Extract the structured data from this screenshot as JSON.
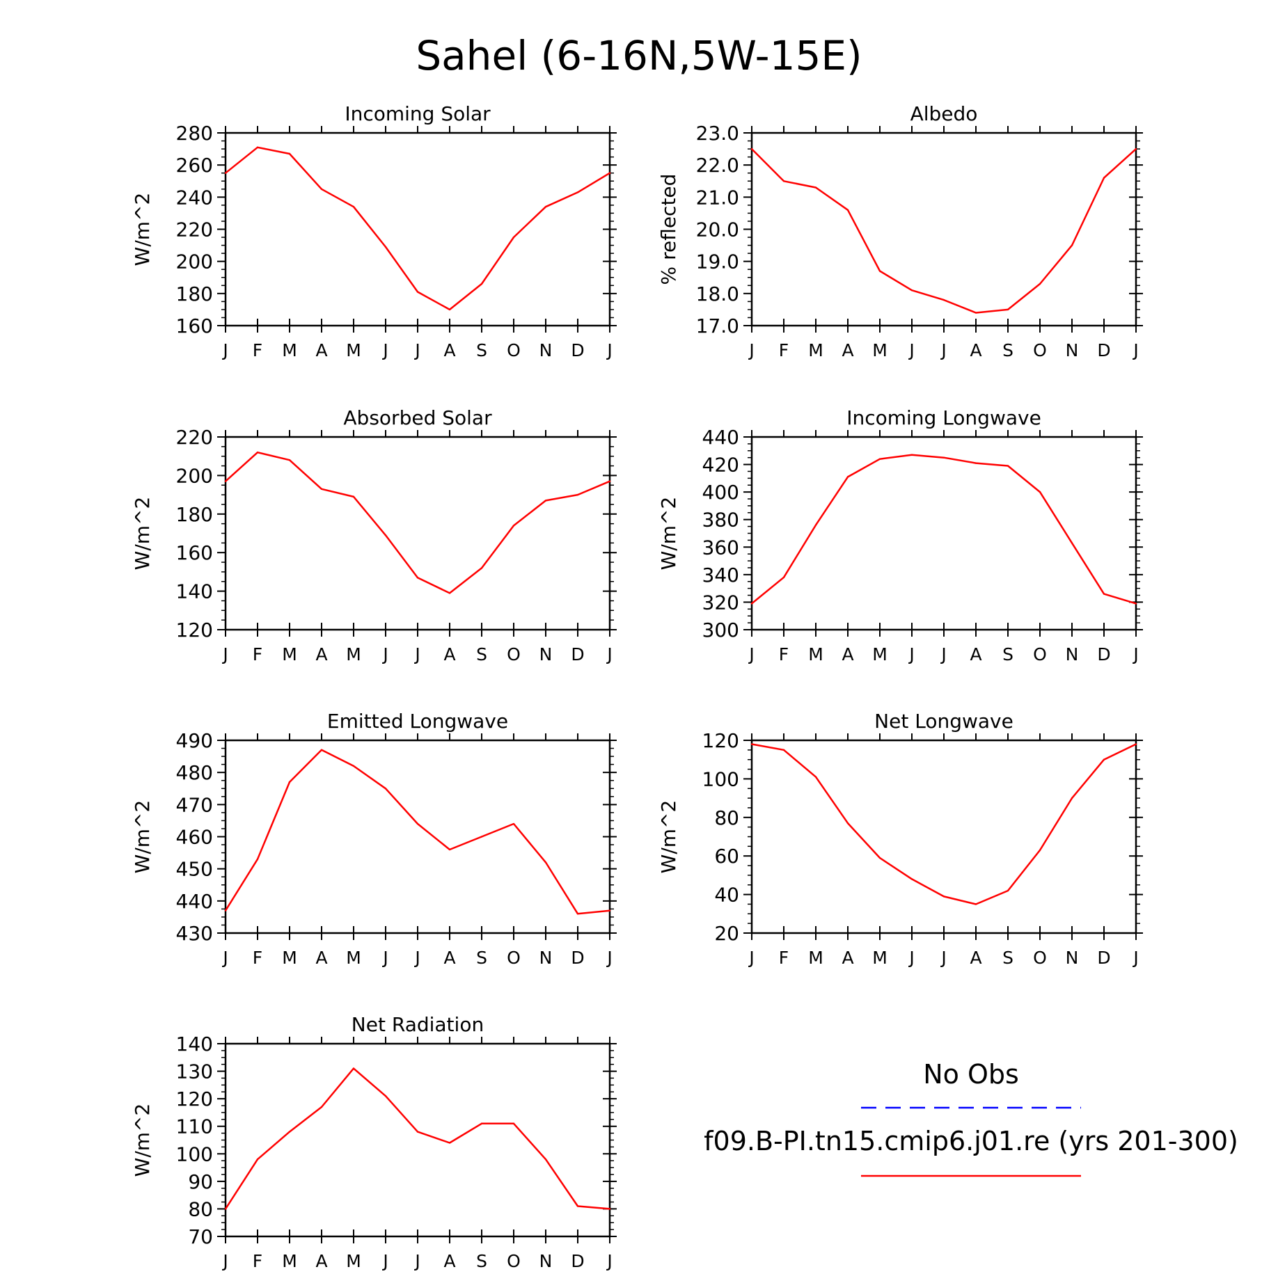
{
  "figure_title": "Sahel (6-16N,5W-15E)",
  "legend": {
    "obs_label": "No Obs",
    "obs_color": "#0000ff",
    "model_label": "f09.B-PI.tn15.cmip6.j01.re (yrs 201-300)",
    "model_color": "#ff0000"
  },
  "month_labels": [
    "J",
    "F",
    "M",
    "A",
    "M",
    "J",
    "J",
    "A",
    "S",
    "O",
    "N",
    "D",
    "J"
  ],
  "chart_data": [
    {
      "type": "line",
      "title": "Incoming Solar",
      "xlabel": "",
      "ylabel": "W/m^2",
      "ylim": [
        160,
        280
      ],
      "yticks": [
        "160",
        "180",
        "200",
        "220",
        "240",
        "260",
        "280"
      ],
      "minor_step": 5,
      "x": [
        "J",
        "F",
        "M",
        "A",
        "M",
        "J",
        "J",
        "A",
        "S",
        "O",
        "N",
        "D",
        "J"
      ],
      "series": [
        {
          "values": [
            255,
            271,
            267,
            245,
            234,
            209,
            181,
            170,
            186,
            215,
            234,
            243,
            255
          ]
        }
      ]
    },
    {
      "type": "line",
      "title": "Albedo",
      "xlabel": "",
      "ylabel": "% reflected",
      "ylim": [
        17.0,
        23.0
      ],
      "yticks": [
        "17.0",
        "18.0",
        "19.0",
        "20.0",
        "21.0",
        "22.0",
        "23.0"
      ],
      "minor_step": 0.25,
      "x": [
        "J",
        "F",
        "M",
        "A",
        "M",
        "J",
        "J",
        "A",
        "S",
        "O",
        "N",
        "D",
        "J"
      ],
      "series": [
        {
          "values": [
            22.5,
            21.5,
            21.3,
            20.6,
            18.7,
            18.1,
            17.8,
            17.4,
            17.5,
            18.3,
            19.5,
            21.6,
            22.5
          ]
        }
      ]
    },
    {
      "type": "line",
      "title": "Absorbed Solar",
      "xlabel": "",
      "ylabel": "W/m^2",
      "ylim": [
        120,
        220
      ],
      "yticks": [
        "120",
        "140",
        "160",
        "180",
        "200",
        "220"
      ],
      "minor_step": 5,
      "x": [
        "J",
        "F",
        "M",
        "A",
        "M",
        "J",
        "J",
        "A",
        "S",
        "O",
        "N",
        "D",
        "J"
      ],
      "series": [
        {
          "values": [
            197,
            212,
            208,
            193,
            189,
            169,
            147,
            139,
            152,
            174,
            187,
            190,
            197
          ]
        }
      ]
    },
    {
      "type": "line",
      "title": "Incoming Longwave",
      "xlabel": "",
      "ylabel": "W/m^2",
      "ylim": [
        300,
        440
      ],
      "yticks": [
        "300",
        "320",
        "340",
        "360",
        "380",
        "400",
        "420",
        "440"
      ],
      "minor_step": 5,
      "x": [
        "J",
        "F",
        "M",
        "A",
        "M",
        "J",
        "J",
        "A",
        "S",
        "O",
        "N",
        "D",
        "J"
      ],
      "series": [
        {
          "values": [
            319,
            338,
            376,
            411,
            424,
            427,
            425,
            421,
            419,
            400,
            363,
            326,
            319
          ]
        }
      ]
    },
    {
      "type": "line",
      "title": "Emitted Longwave",
      "xlabel": "",
      "ylabel": "W/m^2",
      "ylim": [
        430,
        490
      ],
      "yticks": [
        "430",
        "440",
        "450",
        "460",
        "470",
        "480",
        "490"
      ],
      "minor_step": 2.5,
      "x": [
        "J",
        "F",
        "M",
        "A",
        "M",
        "J",
        "J",
        "A",
        "S",
        "O",
        "N",
        "D",
        "J"
      ],
      "series": [
        {
          "values": [
            437,
            453,
            477,
            487,
            482,
            475,
            464,
            456,
            460,
            464,
            452,
            436,
            437
          ]
        }
      ]
    },
    {
      "type": "line",
      "title": "Net Longwave",
      "xlabel": "",
      "ylabel": "W/m^2",
      "ylim": [
        20,
        120
      ],
      "yticks": [
        "20",
        "40",
        "60",
        "80",
        "100",
        "120"
      ],
      "minor_step": 5,
      "x": [
        "J",
        "F",
        "M",
        "A",
        "M",
        "J",
        "J",
        "A",
        "S",
        "O",
        "N",
        "D",
        "J"
      ],
      "series": [
        {
          "values": [
            118,
            115,
            101,
            77,
            59,
            48,
            39,
            35,
            42,
            63,
            90,
            110,
            118
          ]
        }
      ]
    },
    {
      "type": "line",
      "title": "Net Radiation",
      "xlabel": "",
      "ylabel": "W/m^2",
      "ylim": [
        70,
        140
      ],
      "yticks": [
        "70",
        "80",
        "90",
        "100",
        "110",
        "120",
        "130",
        "140"
      ],
      "minor_step": 2.5,
      "x": [
        "J",
        "F",
        "M",
        "A",
        "M",
        "J",
        "J",
        "A",
        "S",
        "O",
        "N",
        "D",
        "J"
      ],
      "series": [
        {
          "values": [
            80,
            98,
            108,
            117,
            131,
            121,
            108,
            104,
            111,
            111,
            98,
            81,
            80
          ]
        }
      ]
    }
  ]
}
